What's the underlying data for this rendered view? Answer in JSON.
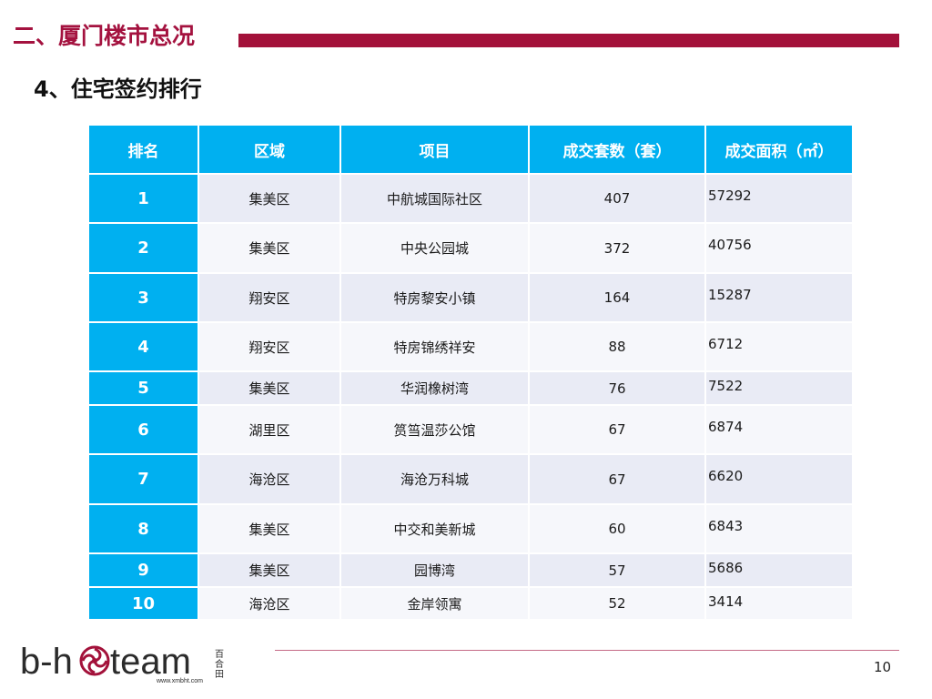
{
  "header": {
    "section_title": "二、厦门楼市总况",
    "sub_title": "4、住宅签约排行"
  },
  "table": {
    "columns": [
      "排名",
      "区域",
      "项目",
      "成交套数（套）",
      "成交面积（㎡）"
    ],
    "rows": [
      {
        "rank": "1",
        "district": "集美区",
        "project": "中航城国际社区",
        "units": "407",
        "area": "57292"
      },
      {
        "rank": "2",
        "district": "集美区",
        "project": "中央公园城",
        "units": "372",
        "area": "40756"
      },
      {
        "rank": "3",
        "district": "翔安区",
        "project": "特房黎安小镇",
        "units": "164",
        "area": "15287"
      },
      {
        "rank": "4",
        "district": "翔安区",
        "project": "特房锦绣祥安",
        "units": "88",
        "area": "6712"
      },
      {
        "rank": "5",
        "district": "集美区",
        "project": "华润橡树湾",
        "units": "76",
        "area": "7522"
      },
      {
        "rank": "6",
        "district": "湖里区",
        "project": "筼筜温莎公馆",
        "units": "67",
        "area": "6874"
      },
      {
        "rank": "7",
        "district": "海沧区",
        "project": "海沧万科城",
        "units": "67",
        "area": "6620"
      },
      {
        "rank": "8",
        "district": "集美区",
        "project": "中交和美新城",
        "units": "60",
        "area": "6843"
      },
      {
        "rank": "9",
        "district": "集美区",
        "project": "园博湾",
        "units": "57",
        "area": "5686"
      },
      {
        "rank": "10",
        "district": "海沧区",
        "project": "金岸领寓",
        "units": "52",
        "area": "3414"
      }
    ]
  },
  "logo": {
    "text_b": "b-h",
    "text_team": "team",
    "chinese": "百合田",
    "url": "www.xmbht.com",
    "icon": "swirl-flower-icon"
  },
  "footer": {
    "page_number": "10"
  },
  "colors": {
    "accent": "#a3113a",
    "table_header": "#00b0f0",
    "row_odd": "#e9ebf5",
    "row_even": "#f6f7fb"
  }
}
